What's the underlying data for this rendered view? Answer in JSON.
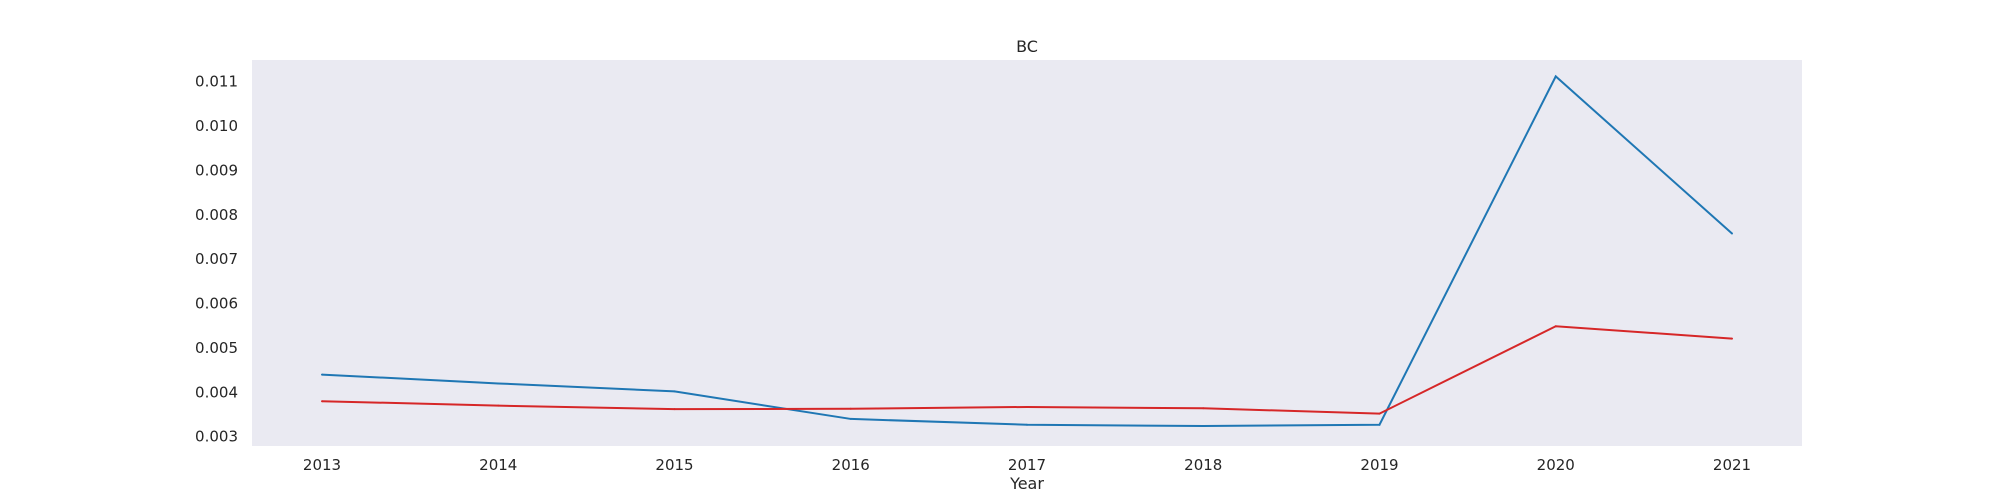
{
  "chart_data": {
    "type": "line",
    "title": "BC",
    "xlabel": "Year",
    "ylabel": "",
    "x": [
      2013,
      2014,
      2015,
      2016,
      2017,
      2018,
      2019,
      2020,
      2021
    ],
    "x_tick_labels": [
      "2013",
      "2014",
      "2015",
      "2016",
      "2017",
      "2018",
      "2019",
      "2020",
      "2021"
    ],
    "ylim": [
      0.00279,
      0.01149
    ],
    "y_ticks": [
      0.003,
      0.004,
      0.005,
      0.006,
      0.007,
      0.008,
      0.009,
      0.01,
      0.011
    ],
    "y_tick_labels": [
      "0.003",
      "0.004",
      "0.005",
      "0.006",
      "0.007",
      "0.008",
      "0.009",
      "0.010",
      "0.011"
    ],
    "grid": false,
    "background_color": "#eaeaf2",
    "series": [
      {
        "color": "#1f77b4",
        "values": [
          0.0044,
          0.0042,
          0.00402,
          0.0034,
          0.00327,
          0.00324,
          0.00327,
          0.01112,
          0.00758
        ]
      },
      {
        "color": "#d62728",
        "values": [
          0.0038,
          0.0037,
          0.00362,
          0.00363,
          0.00367,
          0.00364,
          0.00352,
          0.00549,
          0.00521
        ]
      }
    ]
  }
}
